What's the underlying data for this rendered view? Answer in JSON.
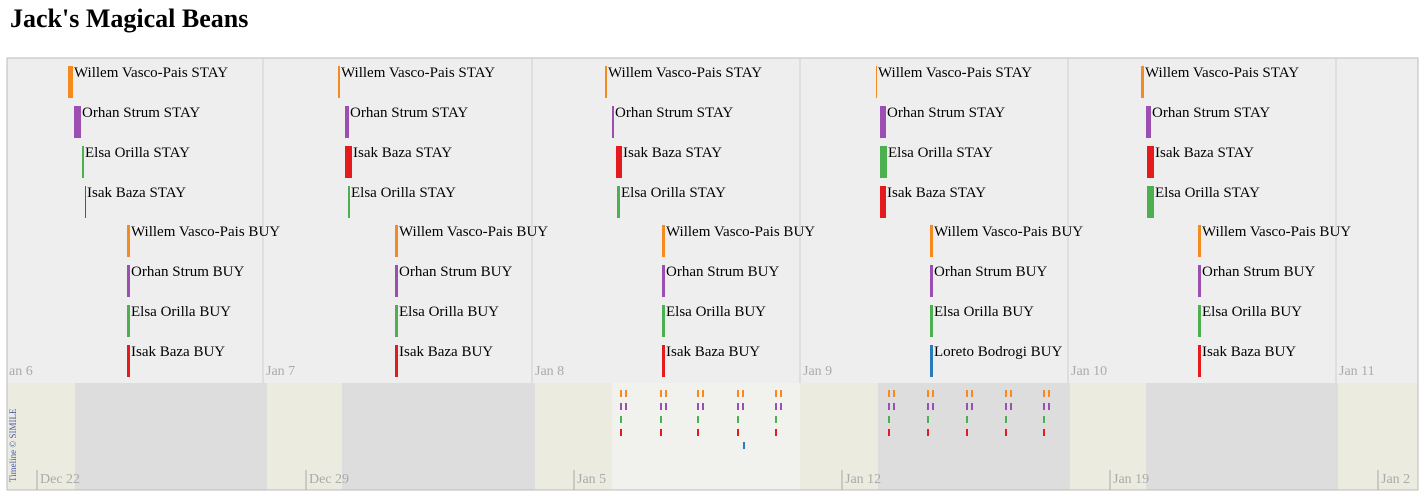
{
  "header": {
    "title": "Jack's Magical Beans"
  },
  "timeline": {
    "upper_dates": [
      "an 6",
      "Jan 7",
      "Jan 8",
      "Jan 9",
      "Jan 10",
      "Jan 11"
    ],
    "lower_dates": [
      "Dec 22",
      "Dec 29",
      "Jan 5",
      "Jan 12",
      "Jan 19",
      "Jan 2"
    ],
    "credit": "Timeline © SIMILE",
    "events": [
      {
        "label": "Willem Vasco-Pais STAY",
        "color": "#f58a1f"
      },
      {
        "label": "Orhan Strum STAY",
        "color": "#9b4fb0"
      },
      {
        "label": "Elsa Orilla STAY",
        "color": "#4caf50"
      },
      {
        "label": "Isak Baza STAY",
        "color": "#e41a1c"
      },
      {
        "label": "Willem Vasco-Pais BUY",
        "color": "#f58a1f"
      },
      {
        "label": "Orhan Strum BUY",
        "color": "#9b4fb0"
      },
      {
        "label": "Elsa Orilla BUY",
        "color": "#4caf50"
      },
      {
        "label": "Isak Baza BUY",
        "color": "#e41a1c"
      },
      {
        "label": "Willem Vasco-Pais STAY",
        "color": "#f58a1f"
      },
      {
        "label": "Orhan Strum STAY",
        "color": "#9b4fb0"
      },
      {
        "label": "Isak Baza STAY",
        "color": "#e41a1c"
      },
      {
        "label": "Elsa Orilla STAY",
        "color": "#4caf50"
      },
      {
        "label": "Willem Vasco-Pais BUY",
        "color": "#f58a1f"
      },
      {
        "label": "Orhan Strum BUY",
        "color": "#9b4fb0"
      },
      {
        "label": "Elsa Orilla BUY",
        "color": "#4caf50"
      },
      {
        "label": "Isak Baza BUY",
        "color": "#e41a1c"
      },
      {
        "label": "Willem Vasco-Pais STAY",
        "color": "#f58a1f"
      },
      {
        "label": "Orhan Strum STAY",
        "color": "#9b4fb0"
      },
      {
        "label": "Isak Baza STAY",
        "color": "#e41a1c"
      },
      {
        "label": "Elsa Orilla STAY",
        "color": "#4caf50"
      },
      {
        "label": "Willem Vasco-Pais BUY",
        "color": "#f58a1f"
      },
      {
        "label": "Orhan Strum BUY",
        "color": "#9b4fb0"
      },
      {
        "label": "Elsa Orilla BUY",
        "color": "#4caf50"
      },
      {
        "label": "Isak Baza BUY",
        "color": "#e41a1c"
      },
      {
        "label": "Willem Vasco-Pais STAY",
        "color": "#f58a1f"
      },
      {
        "label": "Orhan Strum STAY",
        "color": "#9b4fb0"
      },
      {
        "label": "Elsa Orilla STAY",
        "color": "#4caf50"
      },
      {
        "label": "Isak Baza STAY",
        "color": "#e41a1c"
      },
      {
        "label": "Willem Vasco-Pais BUY",
        "color": "#f58a1f"
      },
      {
        "label": "Orhan Strum BUY",
        "color": "#9b4fb0"
      },
      {
        "label": "Elsa Orilla BUY",
        "color": "#4caf50"
      },
      {
        "label": "Loreto Bodrogi BUY",
        "color": "#2b7bba"
      },
      {
        "label": "Willem Vasco-Pais STAY",
        "color": "#f58a1f"
      },
      {
        "label": "Orhan Strum STAY",
        "color": "#9b4fb0"
      },
      {
        "label": "Isak Baza STAY",
        "color": "#e41a1c"
      },
      {
        "label": "Elsa Orilla STAY",
        "color": "#4caf50"
      },
      {
        "label": "Willem Vasco-Pais BUY",
        "color": "#f58a1f"
      },
      {
        "label": "Orhan Strum BUY",
        "color": "#9b4fb0"
      },
      {
        "label": "Elsa Orilla BUY",
        "color": "#4caf50"
      },
      {
        "label": "Isak Baza BUY",
        "color": "#e41a1c"
      }
    ]
  }
}
